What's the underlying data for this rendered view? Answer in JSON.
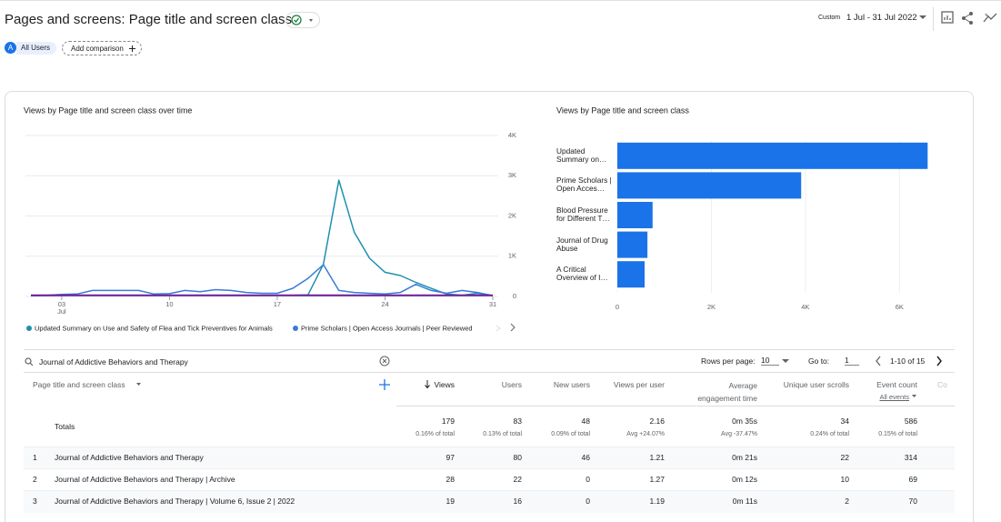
{
  "header": {
    "title": "Pages and screens: Page title and screen class",
    "segment_badge": "A",
    "segment": "All Users",
    "add_comparison": "Add comparison",
    "date_label": "Custom",
    "date_range": "1 Jul - 31 Jul 2022"
  },
  "chart_data": [
    {
      "type": "line",
      "title": "Views by Page title and screen class over time",
      "x": [
        1,
        2,
        3,
        4,
        5,
        6,
        7,
        8,
        9,
        10,
        11,
        12,
        13,
        14,
        15,
        16,
        17,
        18,
        19,
        20,
        21,
        22,
        23,
        24,
        25,
        26,
        27,
        28,
        29,
        30,
        31
      ],
      "xlim": [
        1,
        31
      ],
      "xticks": [
        {
          "value": 3,
          "label": "03"
        },
        10,
        17,
        24,
        31
      ],
      "x_month_label": "Jul",
      "ylim": [
        0,
        4000
      ],
      "yticks": [
        0,
        {
          "value": 1000,
          "label": "1K"
        },
        {
          "value": 2000,
          "label": "2K"
        },
        {
          "value": 3000,
          "label": "3K"
        },
        {
          "value": 4000,
          "label": "4K"
        }
      ],
      "grid": true,
      "legend_position": "bottom",
      "series": [
        {
          "name": "Updated Summary on Use and Safety of Flea and Tick Preventives for Animals",
          "color": "#1f8fb0",
          "values": [
            30,
            30,
            30,
            30,
            30,
            30,
            30,
            30,
            30,
            30,
            30,
            30,
            30,
            30,
            30,
            30,
            30,
            30,
            40,
            800,
            2890,
            1600,
            950,
            600,
            520,
            350,
            200,
            60,
            30,
            80,
            20
          ]
        },
        {
          "name": "Prime Scholars | Open Access Journals | Peer Reviewed",
          "color": "#3a7bd5",
          "values": [
            20,
            30,
            50,
            60,
            150,
            150,
            150,
            150,
            60,
            70,
            150,
            120,
            170,
            150,
            100,
            80,
            80,
            200,
            450,
            790,
            150,
            100,
            80,
            60,
            100,
            300,
            150,
            80,
            150,
            100,
            20
          ]
        },
        {
          "color": "#6a1b9a",
          "values": [
            30,
            30,
            30,
            30,
            30,
            30,
            30,
            30,
            30,
            30,
            30,
            30,
            30,
            30,
            30,
            30,
            30,
            30,
            30,
            30,
            30,
            30,
            30,
            30,
            30,
            30,
            30,
            30,
            30,
            30,
            30
          ]
        }
      ]
    },
    {
      "type": "bar",
      "orientation": "horizontal",
      "title": "Views by Page title and screen class",
      "categories": [
        "Updated Summary on…",
        "Prime Scholars | Open Acces…",
        "Blood Pressure for Different T…",
        "Journal of Drug Abuse",
        "A Critical Overview of I…"
      ],
      "values": [
        6600,
        3910,
        750,
        640,
        580
      ],
      "color": "#1a73e8",
      "xlim": [
        0,
        7000
      ],
      "xticks": [
        0,
        {
          "value": 2000,
          "label": "2K"
        },
        {
          "value": 4000,
          "label": "4K"
        },
        {
          "value": 6000,
          "label": "6K"
        }
      ],
      "grid": true
    }
  ],
  "table": {
    "search": "Journal of Addictive Behaviors and Therapy",
    "rows_per_page_label": "Rows per page:",
    "rows_per_page": "10",
    "goto_label": "Go to:",
    "goto": "1",
    "pagination": "1-10 of 15",
    "columns": [
      "Page title and screen class",
      "Views",
      "Users",
      "New users",
      "Views per user",
      "Average engagement time",
      "Unique user scrolls",
      "Event count",
      "Co"
    ],
    "event_filter": "All events",
    "totals": {
      "label": "Totals",
      "values": [
        "179",
        "83",
        "48",
        "2.16",
        "0m 35s",
        "34",
        "586"
      ],
      "notes": [
        "0.16% of total",
        "0.13% of total",
        "0.09% of total",
        "Avg +24.07%",
        "Avg -37.47%",
        "0.24% of total",
        "0.15% of total"
      ]
    },
    "rows": [
      [
        "1",
        "Journal of Addictive Behaviors and Therapy",
        "97",
        "80",
        "46",
        "1.21",
        "0m 21s",
        "22",
        "314"
      ],
      [
        "2",
        "Journal of Addictive Behaviors and Therapy | Archive",
        "28",
        "22",
        "0",
        "1.27",
        "0m 12s",
        "10",
        "69"
      ],
      [
        "3",
        "Journal of Addictive Behaviors and Therapy | Volume 6, Issue 2 | 2022",
        "19",
        "16",
        "0",
        "1.19",
        "0m 11s",
        "2",
        "70"
      ]
    ]
  }
}
